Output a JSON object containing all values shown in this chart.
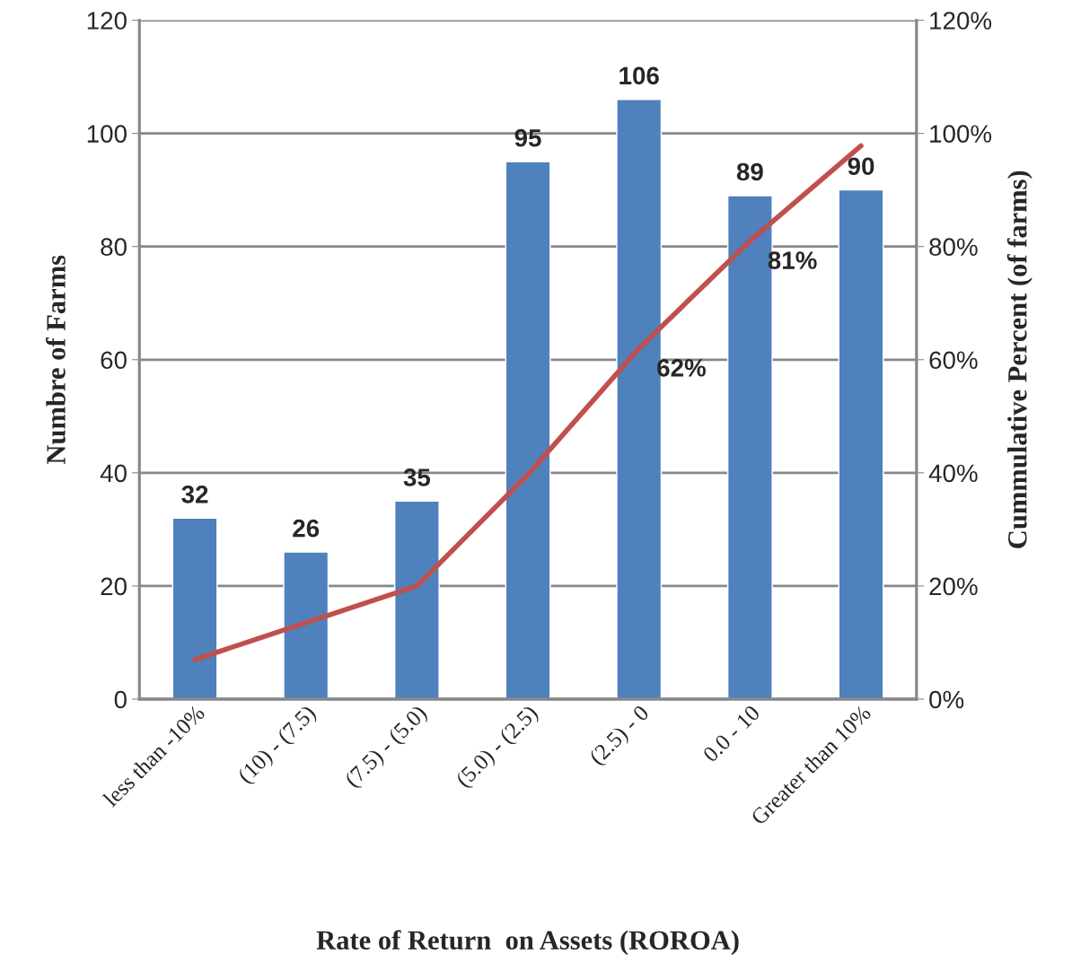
{
  "chart_data": {
    "type": "bar",
    "xlabel": "Rate of Return  on Assets (ROROA)",
    "ylabel": "Numbre of Farms",
    "y2label": "Cummulative Percent (of farms)",
    "categories": [
      "less than -10%",
      "(10) - (7.5)",
      "(7.5) - (5.0)",
      "(5.0) - (2.5)",
      "(2.5) - 0",
      "0.0 - 10",
      "Greater than 10%"
    ],
    "series": [
      {
        "color": "#4f81bd",
        "values": [
          32,
          26,
          35,
          95,
          106,
          89,
          90
        ],
        "value_labels": [
          "32",
          "26",
          "35",
          "95",
          "106",
          "89",
          "90"
        ]
      },
      {
        "type": "line",
        "axis": "y2",
        "color": "#c0504d",
        "values": [
          7,
          13.5,
          20,
          39.7,
          62,
          81,
          97.8
        ],
        "value_labels": [
          null,
          null,
          null,
          null,
          "62%",
          "81%",
          null
        ]
      }
    ],
    "ylim": [
      0,
      120
    ],
    "yticks": [
      0,
      20,
      40,
      60,
      80,
      100,
      120
    ],
    "y2lim": [
      0,
      120
    ],
    "y2ticks": [
      {
        "value": 0,
        "label": "0%"
      },
      {
        "value": 20,
        "label": "20%"
      },
      {
        "value": 40,
        "label": "40%"
      },
      {
        "value": 60,
        "label": "60%"
      },
      {
        "value": 80,
        "label": "80%"
      },
      {
        "value": 100,
        "label": "100%"
      },
      {
        "value": 120,
        "label": "120%"
      }
    ],
    "grid": "y",
    "legend": false,
    "marker": "none",
    "line_style": "solid"
  }
}
